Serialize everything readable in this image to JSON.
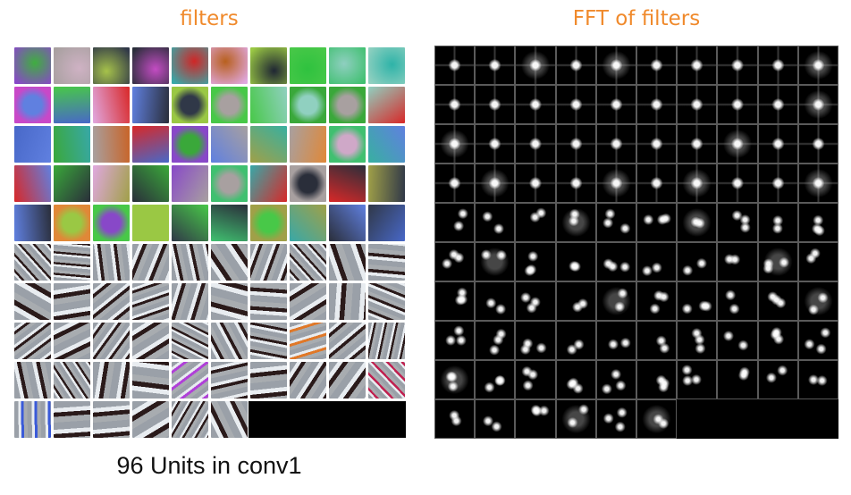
{
  "titles": {
    "left": "filters",
    "right": "FFT of filters"
  },
  "caption": "96 Units in conv1",
  "unit_count": 96,
  "grid": {
    "columns": 10,
    "rows": 10
  },
  "colors": {
    "title": "#f08a2c",
    "fft_background": "#000000",
    "caption": "#111111"
  }
}
